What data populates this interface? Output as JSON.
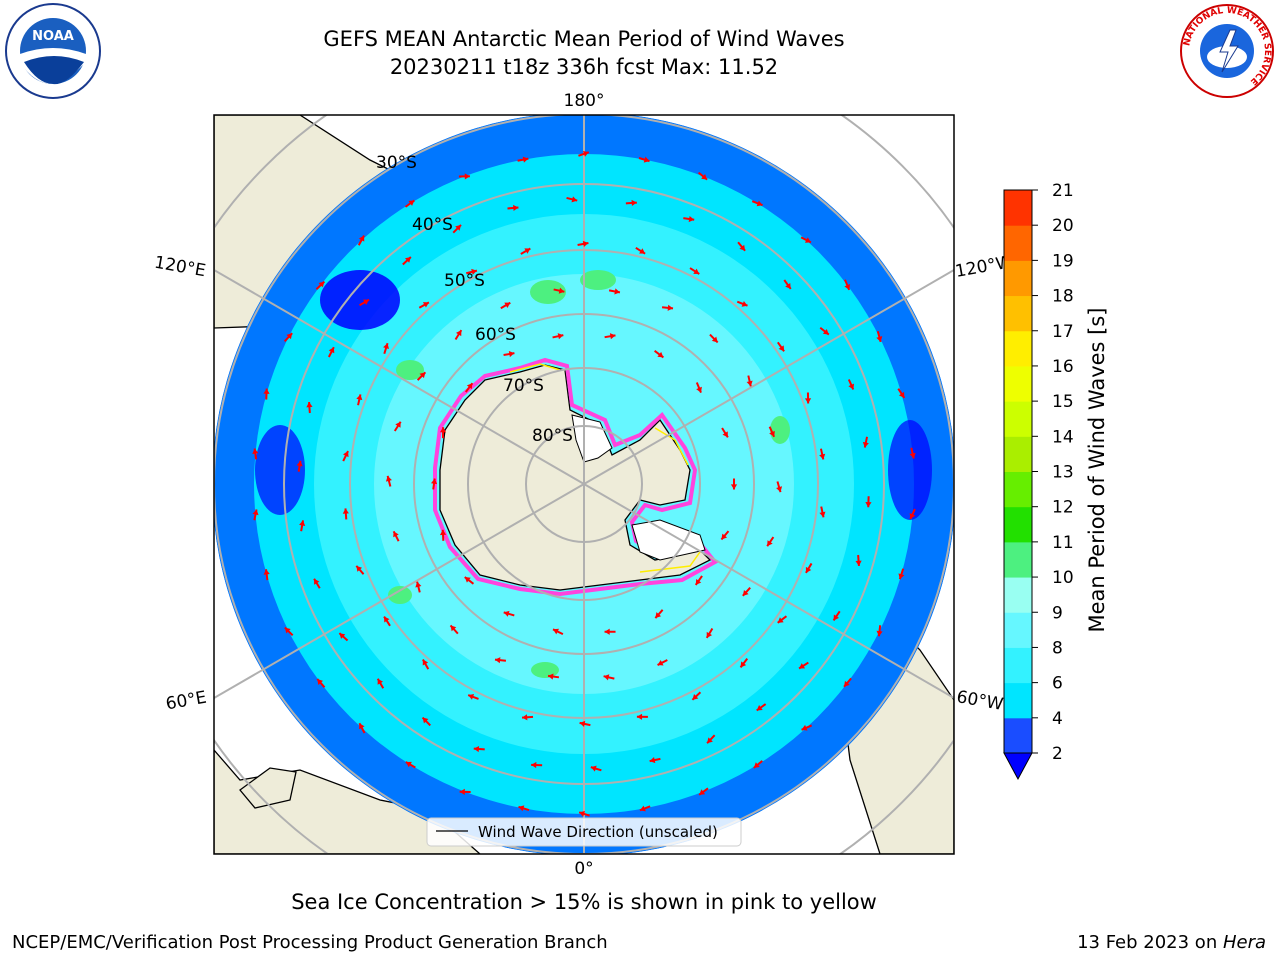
{
  "header": {
    "title_line1": "GEFS MEAN Antarctic Mean Period of Wind Waves",
    "title_line2": "20230211 t18z 336h fcst   Max: 11.52"
  },
  "map": {
    "projection": "south-polar-stereographic",
    "longitude_labels": [
      "180°",
      "120°E",
      "120°W",
      "60°E",
      "60°W",
      "0°"
    ],
    "latitude_labels": [
      "30°S",
      "40°S",
      "50°S",
      "60°S",
      "70°S",
      "80°S"
    ],
    "legend_label": "Wind Wave Direction (unscaled)",
    "arrow_color": "#ff0000",
    "land_color": "#eeecd9",
    "ice_colors": [
      "#ff44dd",
      "#ffee00"
    ]
  },
  "colorbar": {
    "label": "Mean Period of Wind Waves [s]",
    "tick_labels": [
      "2",
      "4",
      "6",
      "8",
      "9",
      "10",
      "11",
      "12",
      "13",
      "14",
      "15",
      "16",
      "17",
      "18",
      "19",
      "20",
      "21"
    ],
    "colors": [
      "#1a4dff",
      "#00e5ff",
      "#33f2ff",
      "#66f7ff",
      "#99fff2",
      "#4df080",
      "#22e000",
      "#66ee00",
      "#aaee00",
      "#ccff00",
      "#eeff00",
      "#ffee00",
      "#ffc000",
      "#ff9900",
      "#ff6600",
      "#ff3300",
      "#ff0000"
    ],
    "under_color": "#0000ff"
  },
  "caption": "Sea Ice Concentration > 15% is shown in pink to yellow",
  "footer": {
    "left": "NCEP/EMC/Verification Post Processing Product Generation Branch",
    "right_prefix": "13 Feb 2023 on ",
    "right_italic": "Hera"
  },
  "logos": {
    "noaa": "NOAA",
    "nws_ring": "NATIONAL WEATHER SERVICE"
  }
}
